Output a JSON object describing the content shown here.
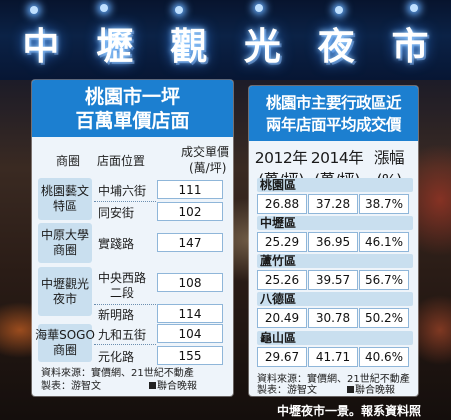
{
  "sign": {
    "chars": [
      "中",
      "壢",
      "觀",
      "光",
      "夜",
      "市"
    ]
  },
  "left": {
    "title_line1": "桃園市一坪",
    "title_line2": "百萬單價店面",
    "col_district": "商圈",
    "col_location": "店面位置",
    "col_price": "成交單價",
    "col_price_unit": "(萬/坪)",
    "groups": [
      {
        "name": "桃園藝文特區",
        "rows": [
          {
            "loc": "中埔六街",
            "price": "111"
          },
          {
            "loc": "同安街",
            "price": "102"
          }
        ]
      },
      {
        "name": "中原大學商圈",
        "rows": [
          {
            "loc": "實踐路",
            "price": "147"
          }
        ]
      },
      {
        "name": "中壢觀光夜市",
        "rows": [
          {
            "loc": "中央西路二段",
            "price": "108"
          },
          {
            "loc": "新明路",
            "price": "114"
          }
        ]
      },
      {
        "name": "海華SOGO商圈",
        "rows": [
          {
            "loc": "九和五街",
            "price": "104"
          },
          {
            "loc": "元化路",
            "price": "155"
          }
        ]
      }
    ],
    "source_line1": "資料來源：實價網、21世紀不動產",
    "source_line2": "製表：游智文",
    "credit": "聯合晚報"
  },
  "right": {
    "title_line1": "桃園市主要行政區近",
    "title_line2": "兩年店面平均成交價",
    "col_2012": "2012年",
    "col_2012_unit": "(萬/坪)",
    "col_2014": "2014年",
    "col_2014_unit": "(萬/坪)",
    "col_change": "漲幅",
    "col_change_unit": "(%)",
    "districts": [
      {
        "name": "桃園區",
        "v2012": "26.88",
        "v2014": "37.28",
        "change": "38.7%"
      },
      {
        "name": "中壢區",
        "v2012": "25.29",
        "v2014": "36.95",
        "change": "46.1%"
      },
      {
        "name": "蘆竹區",
        "v2012": "25.26",
        "v2014": "39.57",
        "change": "56.7%"
      },
      {
        "name": "八德區",
        "v2012": "20.49",
        "v2014": "30.78",
        "change": "50.2%"
      },
      {
        "name": "龜山區",
        "v2012": "29.67",
        "v2014": "41.71",
        "change": "40.6%"
      }
    ],
    "source_line1": "資料來源：實價網、21世紀不動產",
    "source_line2": "製表：游智文",
    "credit": "聯合晚報"
  },
  "caption": "中壢夜市一景。報系資料照"
}
